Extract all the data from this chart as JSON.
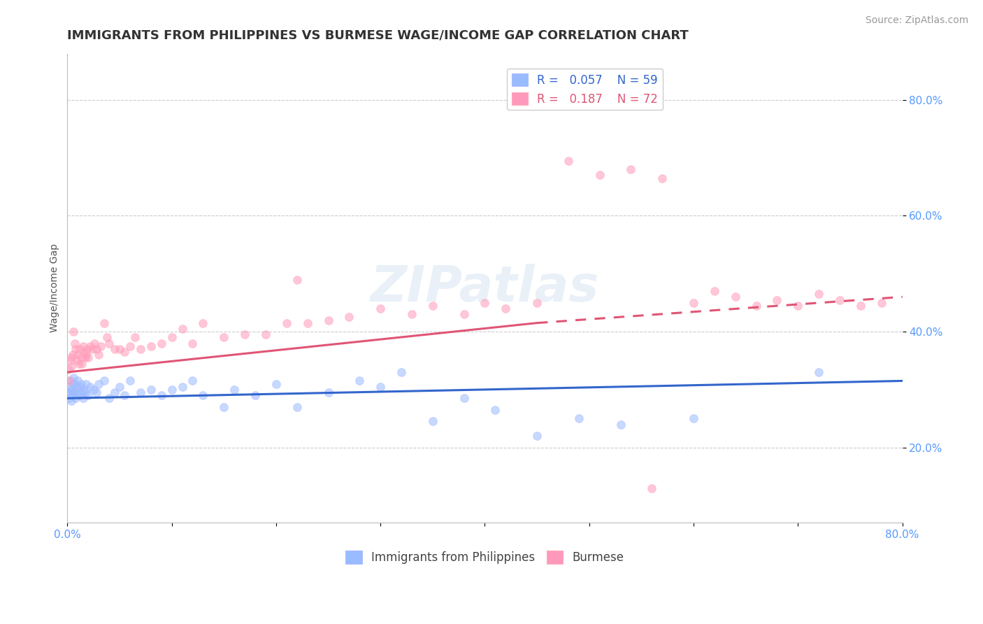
{
  "title": "IMMIGRANTS FROM PHILIPPINES VS BURMESE WAGE/INCOME GAP CORRELATION CHART",
  "source": "Source: ZipAtlas.com",
  "xlabel": "",
  "ylabel": "Wage/Income Gap",
  "xlim": [
    0.0,
    0.8
  ],
  "ylim": [
    0.07,
    0.88
  ],
  "xticks": [
    0.0,
    0.1,
    0.2,
    0.3,
    0.4,
    0.5,
    0.6,
    0.7,
    0.8
  ],
  "xtick_labels": [
    "0.0%",
    "",
    "",
    "",
    "",
    "",
    "",
    "",
    "80.0%"
  ],
  "yticks": [
    0.2,
    0.4,
    0.6,
    0.8
  ],
  "ytick_labels": [
    "20.0%",
    "40.0%",
    "60.0%",
    "80.0%"
  ],
  "grid_color": "#cccccc",
  "background_color": "#ffffff",
  "watermark": "ZIPatlas",
  "blue_scatter_x": [
    0.001,
    0.002,
    0.002,
    0.003,
    0.003,
    0.004,
    0.004,
    0.005,
    0.005,
    0.006,
    0.006,
    0.007,
    0.008,
    0.009,
    0.01,
    0.01,
    0.011,
    0.012,
    0.013,
    0.014,
    0.015,
    0.016,
    0.017,
    0.018,
    0.02,
    0.022,
    0.025,
    0.028,
    0.03,
    0.035,
    0.04,
    0.045,
    0.05,
    0.055,
    0.06,
    0.07,
    0.08,
    0.09,
    0.1,
    0.11,
    0.12,
    0.13,
    0.15,
    0.16,
    0.18,
    0.2,
    0.22,
    0.25,
    0.28,
    0.3,
    0.32,
    0.35,
    0.38,
    0.41,
    0.45,
    0.49,
    0.53,
    0.6,
    0.72
  ],
  "blue_scatter_y": [
    0.295,
    0.305,
    0.285,
    0.315,
    0.295,
    0.28,
    0.3,
    0.31,
    0.295,
    0.32,
    0.295,
    0.31,
    0.285,
    0.305,
    0.295,
    0.315,
    0.29,
    0.305,
    0.31,
    0.295,
    0.285,
    0.3,
    0.295,
    0.31,
    0.29,
    0.305,
    0.3,
    0.295,
    0.31,
    0.315,
    0.285,
    0.295,
    0.305,
    0.29,
    0.315,
    0.295,
    0.3,
    0.29,
    0.3,
    0.305,
    0.315,
    0.29,
    0.27,
    0.3,
    0.29,
    0.31,
    0.27,
    0.295,
    0.315,
    0.305,
    0.33,
    0.245,
    0.285,
    0.265,
    0.22,
    0.25,
    0.24,
    0.25,
    0.33
  ],
  "pink_scatter_x": [
    0.001,
    0.002,
    0.003,
    0.004,
    0.004,
    0.005,
    0.006,
    0.007,
    0.008,
    0.009,
    0.01,
    0.011,
    0.012,
    0.013,
    0.014,
    0.015,
    0.016,
    0.017,
    0.018,
    0.019,
    0.02,
    0.022,
    0.024,
    0.026,
    0.028,
    0.03,
    0.032,
    0.035,
    0.038,
    0.04,
    0.045,
    0.05,
    0.055,
    0.06,
    0.065,
    0.07,
    0.08,
    0.09,
    0.1,
    0.11,
    0.12,
    0.13,
    0.15,
    0.17,
    0.19,
    0.21,
    0.23,
    0.25,
    0.27,
    0.3,
    0.33,
    0.35,
    0.38,
    0.4,
    0.42,
    0.45,
    0.48,
    0.51,
    0.54,
    0.57,
    0.6,
    0.62,
    0.64,
    0.66,
    0.68,
    0.7,
    0.72,
    0.74,
    0.76,
    0.78,
    0.22,
    0.56
  ],
  "pink_scatter_y": [
    0.335,
    0.315,
    0.35,
    0.355,
    0.34,
    0.36,
    0.4,
    0.38,
    0.37,
    0.35,
    0.36,
    0.345,
    0.37,
    0.355,
    0.345,
    0.375,
    0.365,
    0.355,
    0.36,
    0.37,
    0.355,
    0.375,
    0.37,
    0.38,
    0.37,
    0.36,
    0.375,
    0.415,
    0.39,
    0.38,
    0.37,
    0.37,
    0.365,
    0.375,
    0.39,
    0.37,
    0.375,
    0.38,
    0.39,
    0.405,
    0.38,
    0.415,
    0.39,
    0.395,
    0.395,
    0.415,
    0.415,
    0.42,
    0.425,
    0.44,
    0.43,
    0.445,
    0.43,
    0.45,
    0.44,
    0.45,
    0.695,
    0.67,
    0.68,
    0.665,
    0.45,
    0.47,
    0.46,
    0.445,
    0.455,
    0.445,
    0.465,
    0.455,
    0.445,
    0.45,
    0.49,
    0.13
  ],
  "blue_line": {
    "x_start": 0.0,
    "x_end": 0.8,
    "y_start": 0.285,
    "y_end": 0.315,
    "color": "#3366cc",
    "style": "-",
    "linewidth": 2.2
  },
  "pink_line_solid": {
    "x_start": 0.0,
    "x_end": 0.45,
    "y_start": 0.33,
    "y_end": 0.415,
    "color": "#e05575",
    "style": "-",
    "linewidth": 2.2
  },
  "pink_line_dashed": {
    "x_start": 0.45,
    "x_end": 0.8,
    "y_start": 0.415,
    "y_end": 0.46,
    "color": "#e05575",
    "style": "--",
    "linewidth": 2.2
  },
  "legend_R_blue": "0.057",
  "legend_N_blue": "59",
  "legend_R_pink": "0.187",
  "legend_N_pink": "72",
  "series_blue_name": "Immigrants from Philippines",
  "series_pink_name": "Burmese",
  "title_fontsize": 13,
  "axis_label_fontsize": 10,
  "tick_fontsize": 11,
  "legend_fontsize": 12,
  "source_fontsize": 10,
  "marker_size": 70,
  "marker_alpha": 0.55,
  "marker_edge_width": 0.8
}
